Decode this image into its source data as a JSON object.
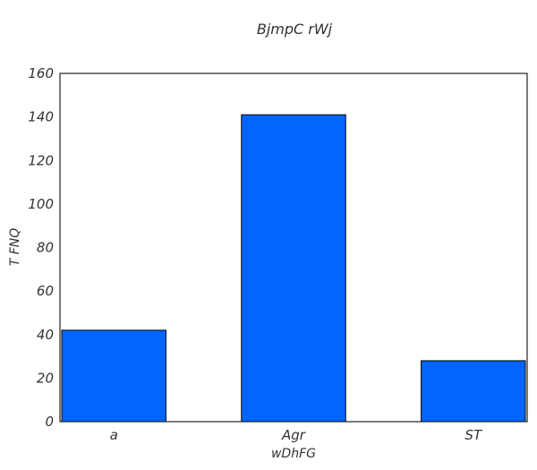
{
  "chart_data": {
    "type": "bar",
    "title": "BjmpC rWj",
    "xlabel": "wDhFG",
    "ylabel": "T FNQ",
    "categories": [
      "a",
      "Agr",
      "ST"
    ],
    "values": [
      42,
      141,
      28
    ],
    "ylim": [
      0,
      160
    ],
    "yticks": [
      0,
      20,
      40,
      60,
      80,
      100,
      120,
      140,
      160
    ],
    "grid": false,
    "bar_color": "#0066ff",
    "bar_edge_color": "#000000"
  }
}
